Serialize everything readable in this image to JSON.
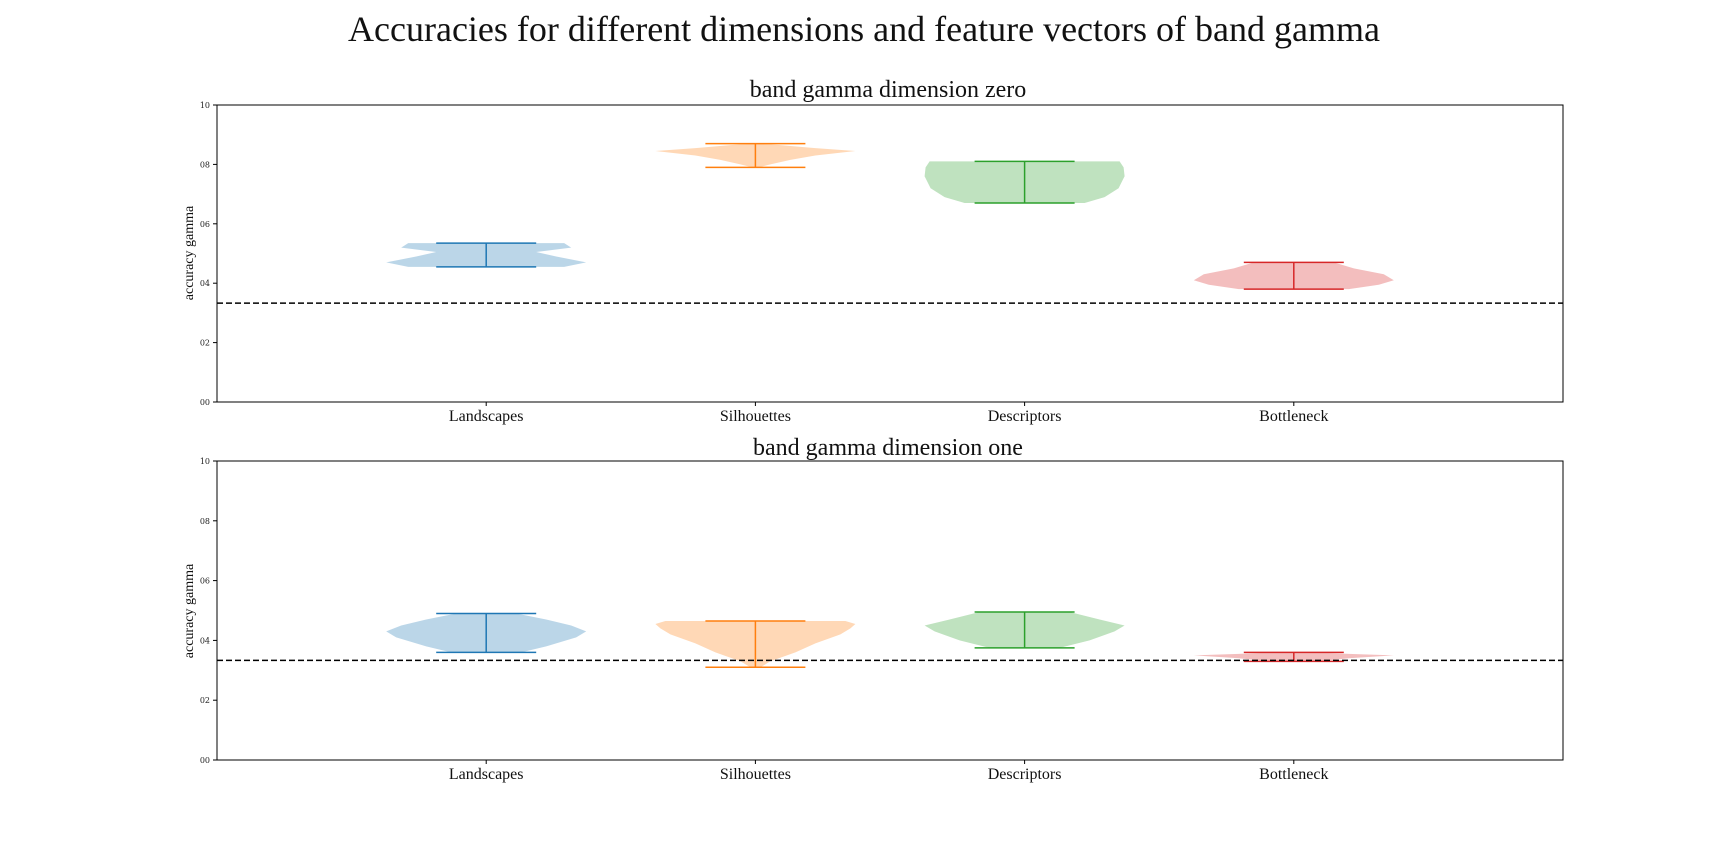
{
  "figure": {
    "title": "Accuracies for different dimensions and feature vectors of band gamma"
  },
  "chart_data": [
    {
      "type": "violin",
      "title": "band gamma dimension zero",
      "xlabel": "",
      "ylabel": "accuracy gamma",
      "ylim": [
        0.0,
        1.0
      ],
      "yticks": [
        0.0,
        0.2,
        0.4,
        0.6,
        0.8,
        1.0
      ],
      "ytick_labels": [
        "00",
        "02",
        "04",
        "06",
        "08",
        "10"
      ],
      "xlim": [
        0,
        5
      ],
      "grid": false,
      "baseline": 0.333,
      "categories": [
        "Landscapes",
        "Silhouettes",
        "Descriptors",
        "Bottleneck"
      ],
      "series": [
        {
          "category": "Landscapes",
          "min": 0.455,
          "max": 0.535,
          "color": "#1f77b4",
          "profile": [
            [
              0.455,
              0.78
            ],
            [
              0.47,
              1.0
            ],
            [
              0.49,
              0.7
            ],
            [
              0.505,
              0.5
            ],
            [
              0.52,
              0.85
            ],
            [
              0.535,
              0.78
            ]
          ]
        },
        {
          "category": "Silhouettes",
          "min": 0.79,
          "max": 0.87,
          "color": "#ff7f0e",
          "profile": [
            [
              0.79,
              0.03
            ],
            [
              0.8,
              0.15
            ],
            [
              0.815,
              0.35
            ],
            [
              0.83,
              0.6
            ],
            [
              0.845,
              1.0
            ],
            [
              0.855,
              0.6
            ],
            [
              0.865,
              0.25
            ],
            [
              0.87,
              0.03
            ]
          ]
        },
        {
          "category": "Descriptors",
          "min": 0.67,
          "max": 0.81,
          "color": "#2ca02c",
          "profile": [
            [
              0.67,
              0.6
            ],
            [
              0.69,
              0.8
            ],
            [
              0.72,
              0.94
            ],
            [
              0.76,
              1.0
            ],
            [
              0.79,
              0.99
            ],
            [
              0.81,
              0.95
            ]
          ]
        },
        {
          "category": "Bottleneck",
          "min": 0.38,
          "max": 0.47,
          "color": "#d62728",
          "profile": [
            [
              0.38,
              0.55
            ],
            [
              0.395,
              0.85
            ],
            [
              0.41,
              1.0
            ],
            [
              0.43,
              0.9
            ],
            [
              0.45,
              0.6
            ],
            [
              0.47,
              0.4
            ]
          ]
        }
      ]
    },
    {
      "type": "violin",
      "title": "band gamma dimension one",
      "xlabel": "",
      "ylabel": "accuracy gamma",
      "ylim": [
        0.0,
        1.0
      ],
      "yticks": [
        0.0,
        0.2,
        0.4,
        0.6,
        0.8,
        1.0
      ],
      "ytick_labels": [
        "00",
        "02",
        "04",
        "06",
        "08",
        "10"
      ],
      "xlim": [
        0,
        5
      ],
      "grid": false,
      "baseline": 0.333,
      "categories": [
        "Landscapes",
        "Silhouettes",
        "Descriptors",
        "Bottleneck"
      ],
      "series": [
        {
          "category": "Landscapes",
          "min": 0.36,
          "max": 0.49,
          "color": "#1f77b4",
          "profile": [
            [
              0.36,
              0.35
            ],
            [
              0.38,
              0.6
            ],
            [
              0.41,
              0.9
            ],
            [
              0.43,
              1.0
            ],
            [
              0.45,
              0.85
            ],
            [
              0.47,
              0.6
            ],
            [
              0.49,
              0.3
            ]
          ]
        },
        {
          "category": "Silhouettes",
          "min": 0.31,
          "max": 0.465,
          "color": "#ff7f0e",
          "profile": [
            [
              0.31,
              0.05
            ],
            [
              0.33,
              0.15
            ],
            [
              0.36,
              0.4
            ],
            [
              0.39,
              0.6
            ],
            [
              0.42,
              0.85
            ],
            [
              0.44,
              0.95
            ],
            [
              0.455,
              1.0
            ],
            [
              0.465,
              0.9
            ]
          ]
        },
        {
          "category": "Descriptors",
          "min": 0.375,
          "max": 0.495,
          "color": "#2ca02c",
          "profile": [
            [
              0.375,
              0.35
            ],
            [
              0.4,
              0.65
            ],
            [
              0.43,
              0.9
            ],
            [
              0.45,
              1.0
            ],
            [
              0.47,
              0.75
            ],
            [
              0.495,
              0.45
            ]
          ]
        },
        {
          "category": "Bottleneck",
          "min": 0.33,
          "max": 0.36,
          "color": "#d62728",
          "profile": [
            [
              0.33,
              0.25
            ],
            [
              0.34,
              0.55
            ],
            [
              0.35,
              1.0
            ],
            [
              0.355,
              0.55
            ],
            [
              0.36,
              0.2
            ]
          ]
        }
      ]
    }
  ]
}
